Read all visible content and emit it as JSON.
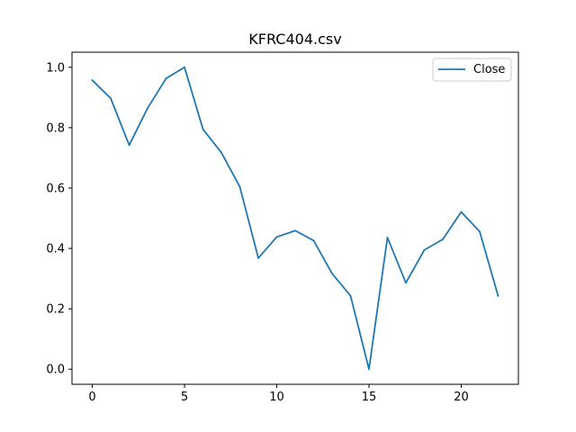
{
  "chart_data": {
    "type": "line",
    "title": "KFRC404.csv",
    "xlabel": "",
    "ylabel": "",
    "x": [
      0,
      1,
      2,
      3,
      4,
      5,
      6,
      7,
      8,
      9,
      10,
      11,
      12,
      13,
      14,
      15,
      16,
      17,
      18,
      19,
      20,
      21,
      22
    ],
    "series": [
      {
        "name": "Close",
        "color": "#1f77b4",
        "values": [
          0.957,
          0.897,
          0.742,
          0.865,
          0.963,
          1.0,
          0.795,
          0.717,
          0.604,
          0.368,
          0.438,
          0.459,
          0.426,
          0.317,
          0.243,
          0.0,
          0.436,
          0.286,
          0.395,
          0.43,
          0.521,
          0.456,
          0.243
        ]
      }
    ],
    "xlim": [
      -1.1,
      23.1
    ],
    "ylim": [
      -0.05,
      1.05
    ],
    "xticks": [
      0,
      5,
      10,
      15,
      20
    ],
    "xtick_labels": [
      "0",
      "5",
      "10",
      "15",
      "20"
    ],
    "yticks": [
      0.0,
      0.2,
      0.4,
      0.6,
      0.8,
      1.0
    ],
    "ytick_labels": [
      "0.0",
      "0.2",
      "0.4",
      "0.6",
      "0.8",
      "1.0"
    ],
    "grid": false,
    "legend_position": "top-right"
  }
}
